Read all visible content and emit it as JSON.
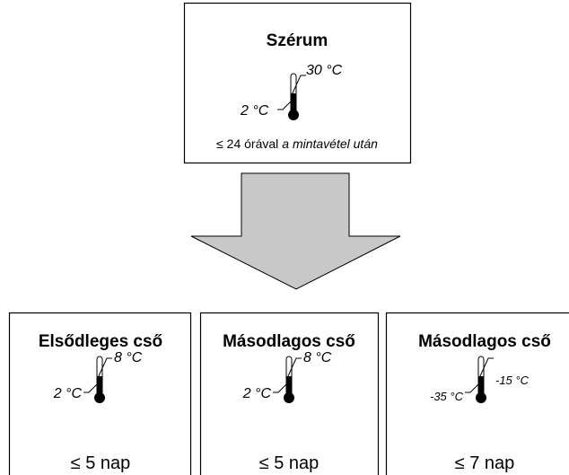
{
  "top": {
    "title": "Szérum",
    "high": "30 °C",
    "low": "2 °C",
    "note": "≤ 24 órával",
    "note_italic": "a mintavétel után"
  },
  "tubes": [
    {
      "title": "Elsődleges cső",
      "high": "8 °C",
      "low": "2 °C",
      "duration": "≤ 5 nap"
    },
    {
      "title": "Másodlagos cső",
      "high": "8 °C",
      "low": "2 °C",
      "duration": "≤ 5 nap"
    },
    {
      "title": "Másodlagos cső",
      "high": "-15 °C",
      "low": "-35 °C",
      "duration": "≤ 7 nap"
    }
  ]
}
